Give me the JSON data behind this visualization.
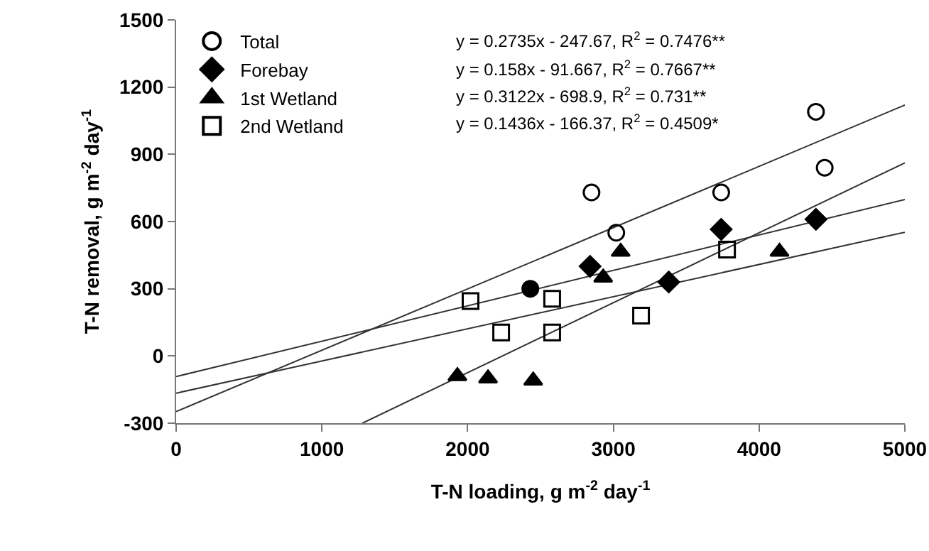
{
  "chart_data": {
    "type": "scatter",
    "xlabel": "T-N loading, g m$^{-2}$ day$^{-1}$",
    "ylabel": "T-N removal, g m$^{-2}$ day$^{-1}$",
    "xlim": [
      0,
      5000
    ],
    "xticks": [
      0,
      1000,
      2000,
      3000,
      4000,
      5000
    ],
    "ylim": [
      -300,
      1500
    ],
    "yticks": [
      -300,
      0,
      300,
      600,
      900,
      1200,
      1500
    ],
    "grid": false,
    "legend": "top left",
    "annotations": [
      "y = 0.2735x - 247.67, R$^{2}$ = 0.7476**",
      "y = 0.158x - 91.667, R$^{2}$ = 0.7667**",
      "y = 0.3122x - 698.9, R$^{2}$ = 0.731**",
      "y = 0.1436x - 166.37, R$^{2}$ = 0.4509*"
    ],
    "series": [
      {
        "type": "line",
        "color": "#333333",
        "marker": "none",
        "x": [
          0,
          5000
        ],
        "values": [
          -248,
          1120
        ]
      },
      {
        "type": "line",
        "color": "#333333",
        "marker": "none",
        "x": [
          0,
          5000
        ],
        "values": [
          -92,
          698
        ]
      },
      {
        "type": "line",
        "color": "#333333",
        "marker": "none",
        "x": [
          1278,
          5000
        ],
        "values": [
          -300,
          862
        ]
      },
      {
        "type": "line",
        "color": "#333333",
        "marker": "none",
        "x": [
          0,
          5000
        ],
        "values": [
          -166,
          552
        ]
      },
      {
        "name": "Total",
        "color": "#000000",
        "marker": "circle-open",
        "x": [
          2850,
          3020,
          3740,
          4390,
          4450
        ],
        "values": [
          730,
          550,
          730,
          1090,
          840
        ]
      },
      {
        "name": "Forebay",
        "color": "#000000",
        "marker": "diamond",
        "x": [
          2840,
          3380,
          3740,
          4390
        ],
        "values": [
          400,
          330,
          565,
          610
        ]
      },
      {
        "name": "1st Wetland",
        "color": "#000000",
        "marker": "triangle",
        "x": [
          1930,
          2140,
          2450,
          2930,
          3050,
          4140
        ],
        "values": [
          -90,
          -100,
          -110,
          350,
          465,
          465
        ]
      },
      {
        "name": "2nd Wetland",
        "color": "#000000",
        "marker": "square-open",
        "x": [
          2020,
          2230,
          2580,
          2580,
          3190,
          3780
        ],
        "values": [
          245,
          105,
          255,
          105,
          180,
          475
        ]
      },
      {
        "color": "#000000",
        "marker": "circle",
        "x": [
          2430
        ],
        "values": [
          300
        ]
      }
    ]
  }
}
